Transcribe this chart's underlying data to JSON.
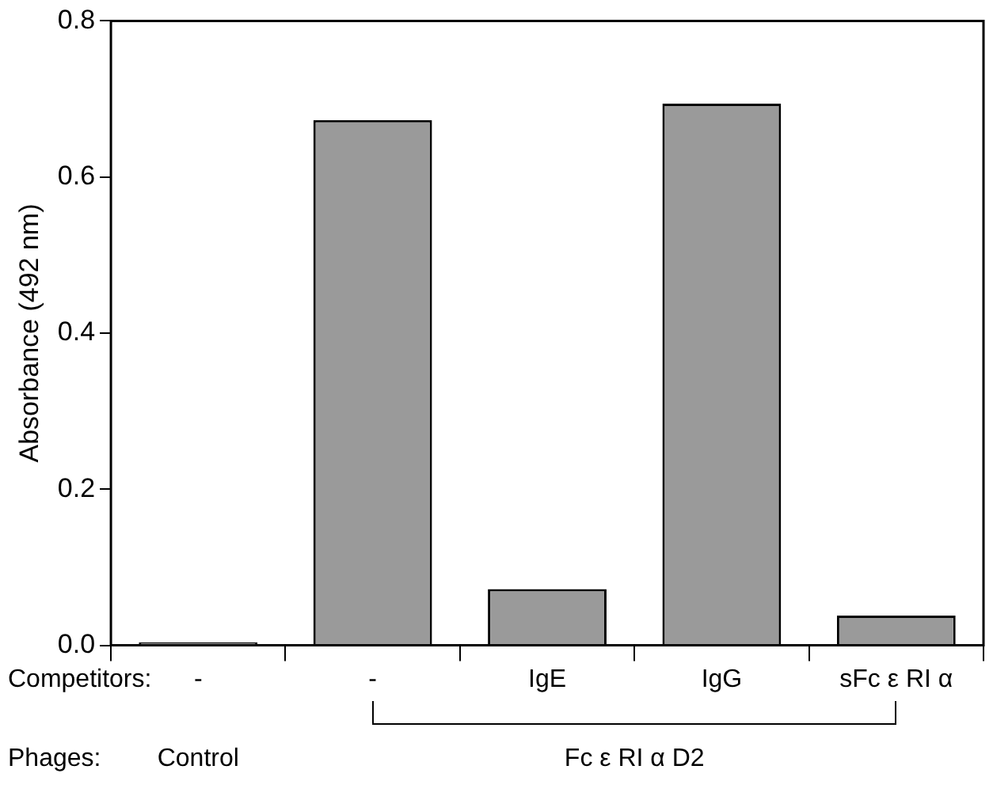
{
  "chart_data": {
    "type": "bar",
    "ylabel": "Absorbance (492 nm)",
    "categories": [
      "-",
      "-",
      "IgE",
      "IgG",
      "sFc ε RI α"
    ],
    "values": [
      0.004,
      0.673,
      0.072,
      0.694,
      0.038
    ],
    "color": "#9a9a9a",
    "ylim": [
      0,
      0.8
    ],
    "yticks": [
      {
        "value": 0,
        "label": "0.0"
      },
      0.2,
      0.4,
      0.6,
      0.8
    ],
    "grid": false,
    "legend": false,
    "annotations": [
      "Competitors:",
      "Phages:",
      "Control",
      "Fc ε RI α D2"
    ]
  }
}
